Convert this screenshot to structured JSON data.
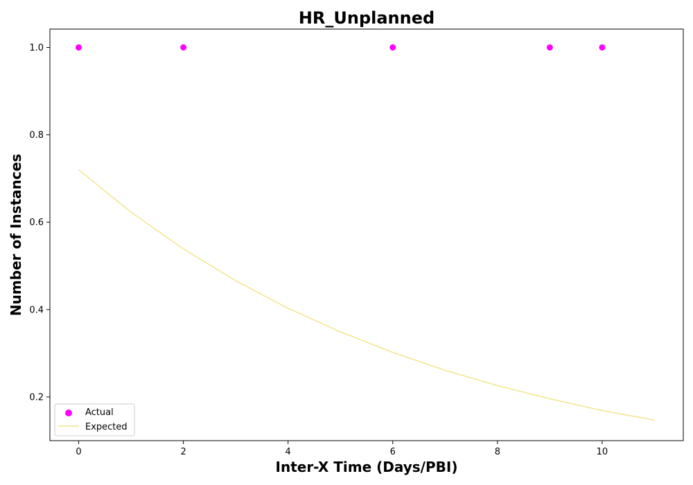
{
  "chart_data": {
    "type": "scatter",
    "title": "HR_Unplanned",
    "xlabel": "Inter-X Time (Days/PBI)",
    "ylabel": "Number of Instances",
    "xlim": [
      -0.55,
      11.55
    ],
    "ylim": [
      0.1,
      1.042
    ],
    "xticks": [
      0,
      2,
      4,
      6,
      8,
      10
    ],
    "yticks": [
      0.2,
      0.4,
      0.6,
      0.8,
      1.0
    ],
    "xtick_labels": [
      "0",
      "2",
      "4",
      "6",
      "8",
      "10"
    ],
    "ytick_labels": [
      "0.2",
      "0.4",
      "0.6",
      "0.8",
      "1.0"
    ],
    "grid": false,
    "legend_position": "lower-left",
    "series": [
      {
        "name": "Actual",
        "kind": "scatter",
        "color": "#ff00ff",
        "x": [
          0,
          2,
          6,
          9,
          10
        ],
        "y": [
          1.0,
          1.0,
          1.0,
          1.0,
          1.0
        ]
      },
      {
        "name": "Expected",
        "kind": "line",
        "color": "#f0e68c",
        "x": [
          0,
          1,
          2,
          3,
          4,
          5,
          6,
          7,
          8,
          9,
          10,
          11
        ],
        "y": [
          0.72,
          0.623,
          0.539,
          0.466,
          0.403,
          0.349,
          0.302,
          0.261,
          0.226,
          0.196,
          0.169,
          0.147
        ]
      }
    ]
  }
}
